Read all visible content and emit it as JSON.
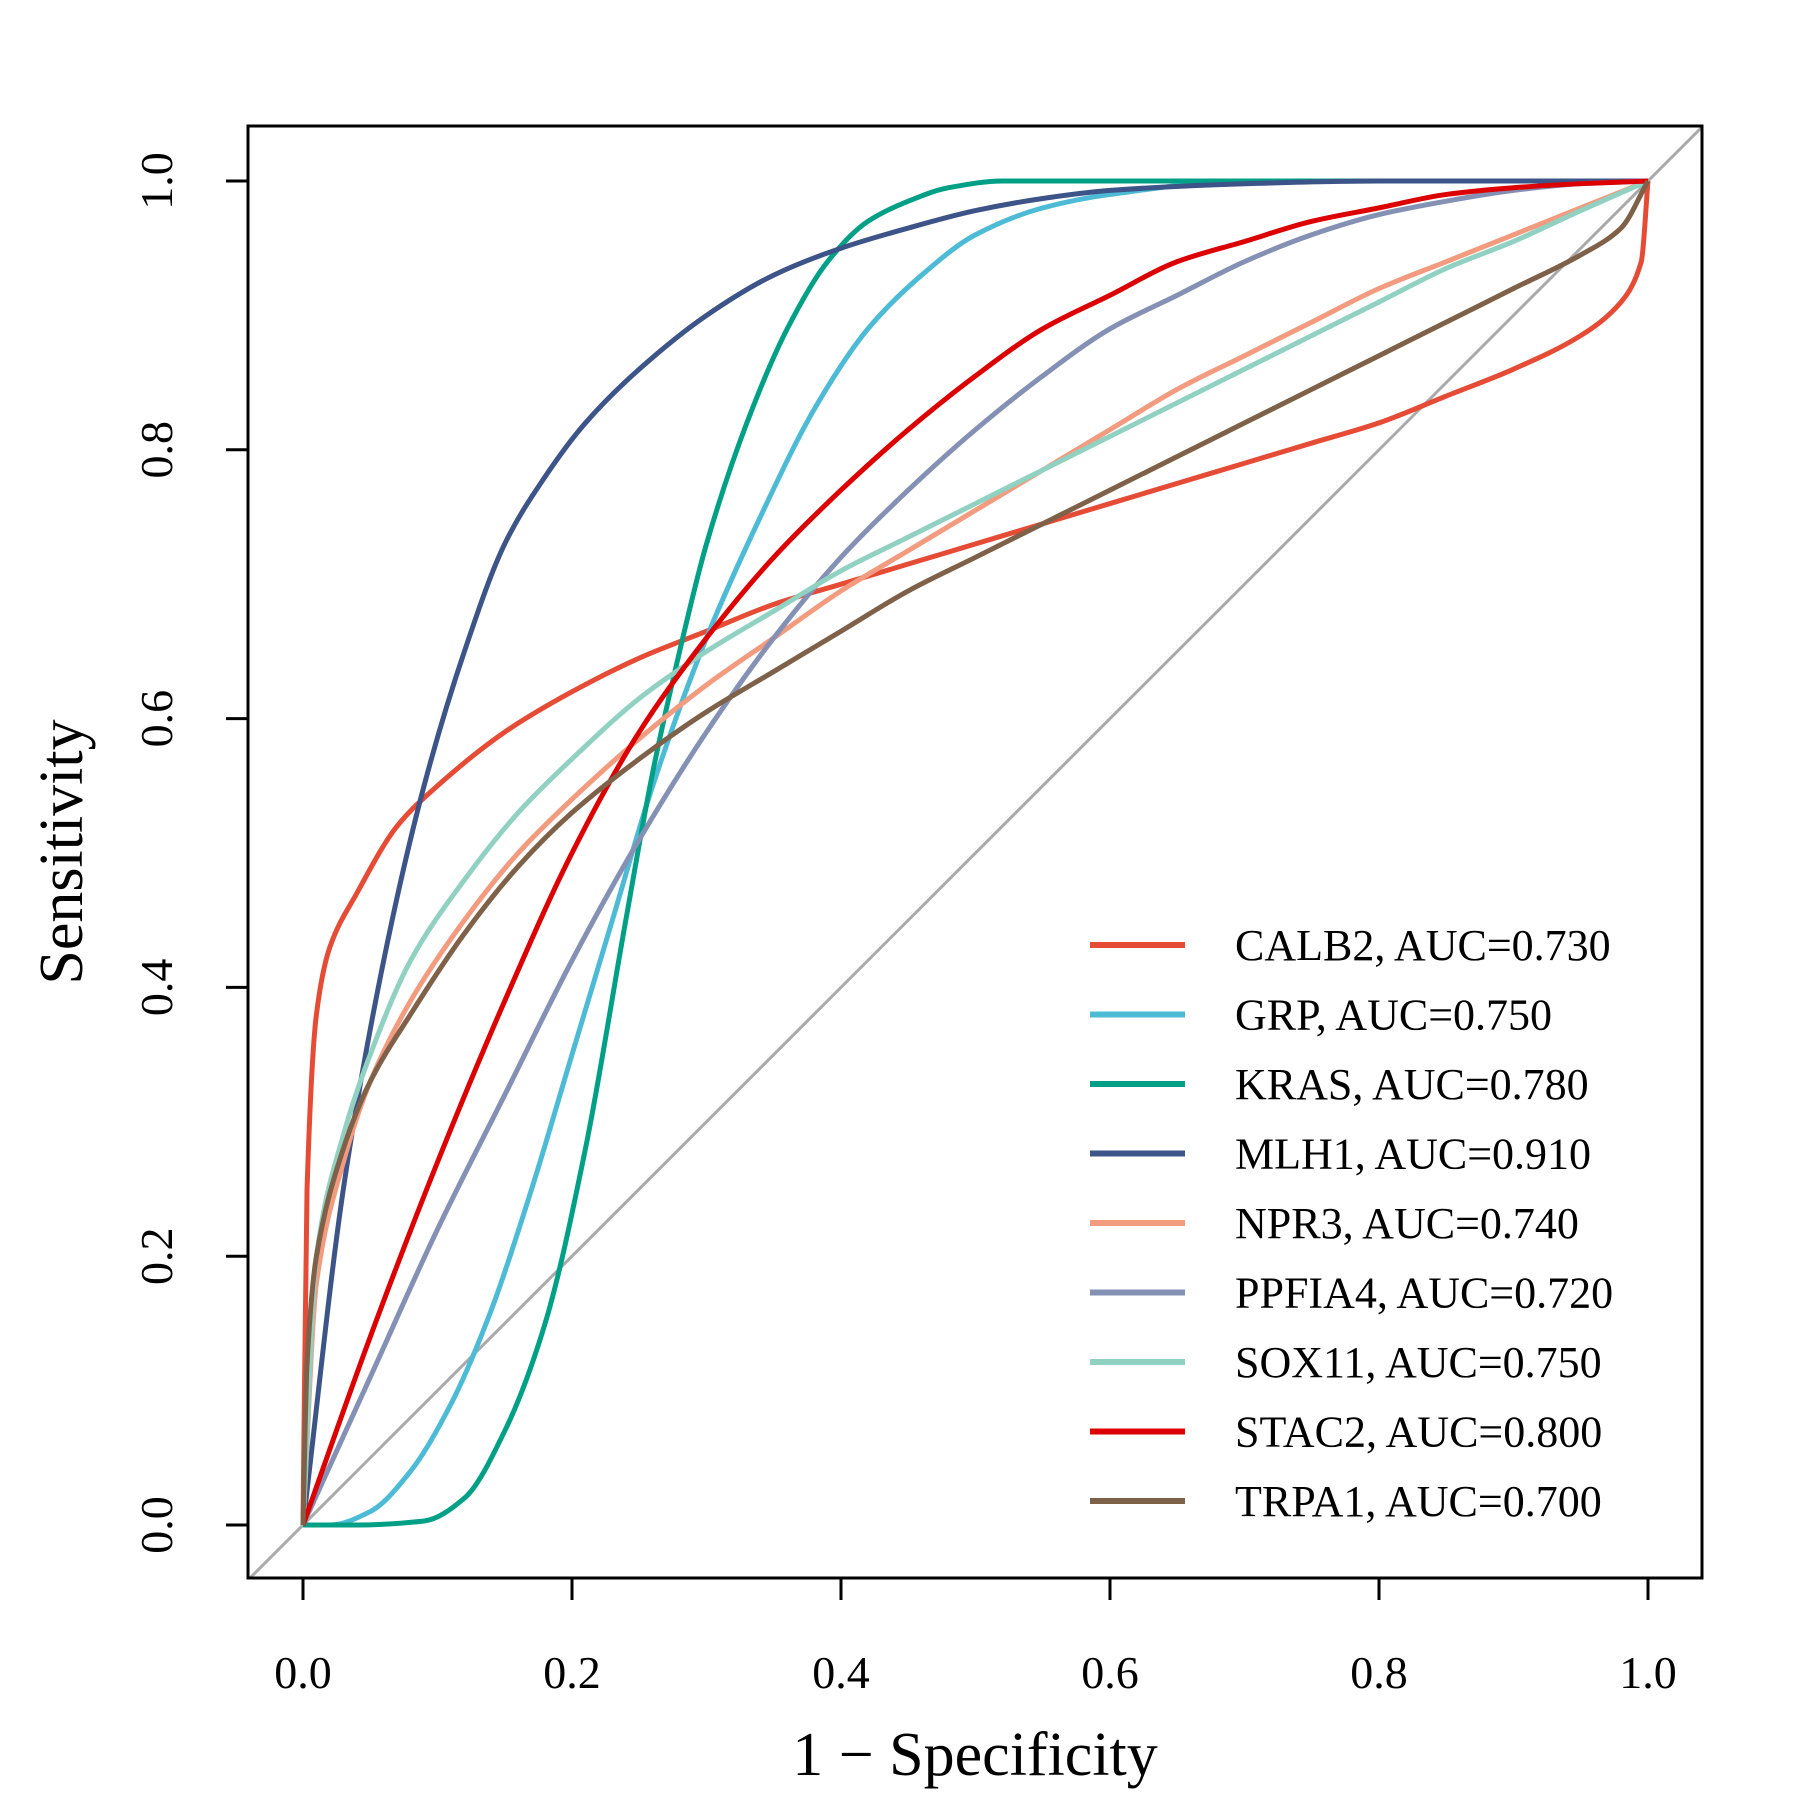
{
  "chart_data": {
    "type": "line",
    "title": "",
    "xlabel": "1 − Specificity",
    "ylabel": "Sensitivity",
    "xlim": [
      0,
      1
    ],
    "ylim": [
      0,
      1
    ],
    "xticks": [
      "0.0",
      "0.2",
      "0.4",
      "0.6",
      "0.8",
      "1.0"
    ],
    "yticks": [
      "0.0",
      "0.2",
      "0.4",
      "0.6",
      "0.8",
      "1.0"
    ],
    "grid": false,
    "legend_position": "bottom-right",
    "reference_line": {
      "color": "#aaaaaa",
      "points": [
        [
          0,
          0
        ],
        [
          1,
          1
        ]
      ]
    },
    "series": [
      {
        "name": "CALB2, AUC=0.730",
        "color": "#e64b35",
        "x": [
          0,
          0.003,
          0.01,
          0.02,
          0.04,
          0.07,
          0.1,
          0.15,
          0.2,
          0.25,
          0.3,
          0.35,
          0.4,
          0.45,
          0.5,
          0.55,
          0.6,
          0.65,
          0.7,
          0.75,
          0.8,
          0.85,
          0.9,
          0.95,
          0.98,
          0.995,
          1.0
        ],
        "y": [
          0,
          0.25,
          0.38,
          0.43,
          0.47,
          0.52,
          0.55,
          0.59,
          0.62,
          0.645,
          0.665,
          0.685,
          0.7,
          0.715,
          0.73,
          0.745,
          0.76,
          0.775,
          0.79,
          0.805,
          0.82,
          0.84,
          0.86,
          0.885,
          0.91,
          0.94,
          1.0
        ]
      },
      {
        "name": "GRP, AUC=0.750",
        "color": "#4dbbd5",
        "x": [
          0,
          0.02,
          0.05,
          0.08,
          0.11,
          0.14,
          0.17,
          0.2,
          0.23,
          0.26,
          0.3,
          0.34,
          0.38,
          0.42,
          0.46,
          0.5,
          0.55,
          0.6,
          0.7,
          0.8,
          0.9,
          1.0
        ],
        "y": [
          0,
          0.0,
          0.01,
          0.04,
          0.09,
          0.16,
          0.25,
          0.35,
          0.45,
          0.55,
          0.66,
          0.75,
          0.83,
          0.89,
          0.93,
          0.96,
          0.98,
          0.99,
          1.0,
          1.0,
          1.0,
          1.0
        ]
      },
      {
        "name": "KRAS, AUC=0.780",
        "color": "#00a087",
        "x": [
          0,
          0.04,
          0.09,
          0.12,
          0.15,
          0.18,
          0.21,
          0.24,
          0.26,
          0.28,
          0.3,
          0.33,
          0.36,
          0.39,
          0.42,
          0.45,
          0.48,
          0.52,
          0.6,
          0.7,
          0.8,
          0.9,
          1.0
        ],
        "y": [
          0,
          0.0,
          0.003,
          0.02,
          0.07,
          0.15,
          0.28,
          0.45,
          0.56,
          0.65,
          0.73,
          0.82,
          0.89,
          0.94,
          0.97,
          0.985,
          0.995,
          1.0,
          1.0,
          1.0,
          1.0,
          1.0,
          1.0
        ]
      },
      {
        "name": "MLH1, AUC=0.910",
        "color": "#3c5488",
        "x": [
          0,
          0.03,
          0.06,
          0.09,
          0.12,
          0.15,
          0.18,
          0.21,
          0.25,
          0.3,
          0.35,
          0.4,
          0.45,
          0.5,
          0.55,
          0.6,
          0.7,
          0.8,
          0.9,
          1.0
        ],
        "y": [
          0,
          0.25,
          0.42,
          0.55,
          0.65,
          0.73,
          0.78,
          0.82,
          0.86,
          0.9,
          0.93,
          0.95,
          0.965,
          0.978,
          0.987,
          0.993,
          0.998,
          1.0,
          1.0,
          1.0
        ]
      },
      {
        "name": "NPR3, AUC=0.740",
        "color": "#f39b7f",
        "x": [
          0,
          0.01,
          0.03,
          0.05,
          0.08,
          0.12,
          0.16,
          0.2,
          0.25,
          0.3,
          0.35,
          0.4,
          0.45,
          0.5,
          0.55,
          0.6,
          0.65,
          0.7,
          0.75,
          0.8,
          0.85,
          0.9,
          0.95,
          1.0
        ],
        "y": [
          0,
          0.18,
          0.27,
          0.33,
          0.39,
          0.45,
          0.5,
          0.54,
          0.585,
          0.625,
          0.66,
          0.695,
          0.725,
          0.755,
          0.785,
          0.815,
          0.845,
          0.87,
          0.895,
          0.92,
          0.94,
          0.96,
          0.98,
          1.0
        ]
      },
      {
        "name": "PPFIA4, AUC=0.720",
        "color": "#8491b4",
        "x": [
          0,
          0.05,
          0.1,
          0.15,
          0.2,
          0.25,
          0.3,
          0.35,
          0.4,
          0.45,
          0.5,
          0.55,
          0.6,
          0.65,
          0.7,
          0.75,
          0.8,
          0.85,
          0.9,
          0.95,
          1.0
        ],
        "y": [
          0,
          0.11,
          0.22,
          0.32,
          0.42,
          0.51,
          0.59,
          0.66,
          0.72,
          0.77,
          0.815,
          0.855,
          0.89,
          0.915,
          0.94,
          0.96,
          0.975,
          0.985,
          0.993,
          0.998,
          1.0
        ]
      },
      {
        "name": "SOX11, AUC=0.750",
        "color": "#91d1c2",
        "x": [
          0,
          0.01,
          0.03,
          0.05,
          0.08,
          0.12,
          0.16,
          0.2,
          0.25,
          0.3,
          0.35,
          0.4,
          0.45,
          0.5,
          0.55,
          0.6,
          0.65,
          0.7,
          0.75,
          0.8,
          0.85,
          0.9,
          0.95,
          1.0
        ],
        "y": [
          0,
          0.2,
          0.29,
          0.35,
          0.42,
          0.48,
          0.53,
          0.57,
          0.615,
          0.65,
          0.68,
          0.71,
          0.735,
          0.76,
          0.785,
          0.81,
          0.835,
          0.86,
          0.885,
          0.91,
          0.935,
          0.955,
          0.978,
          1.0
        ]
      },
      {
        "name": "STAC2, AUC=0.800",
        "color": "#dc0000",
        "x": [
          0,
          0.05,
          0.1,
          0.15,
          0.2,
          0.25,
          0.3,
          0.35,
          0.4,
          0.45,
          0.5,
          0.55,
          0.6,
          0.65,
          0.7,
          0.75,
          0.8,
          0.85,
          0.9,
          0.95,
          1.0
        ],
        "y": [
          0,
          0.14,
          0.27,
          0.39,
          0.5,
          0.59,
          0.66,
          0.72,
          0.77,
          0.815,
          0.855,
          0.89,
          0.915,
          0.94,
          0.955,
          0.97,
          0.98,
          0.99,
          0.995,
          0.998,
          1.0
        ]
      },
      {
        "name": "TRPA1, AUC=0.700",
        "color": "#7e6148",
        "x": [
          0,
          0.003,
          0.01,
          0.03,
          0.05,
          0.08,
          0.12,
          0.16,
          0.2,
          0.25,
          0.3,
          0.35,
          0.4,
          0.45,
          0.5,
          0.55,
          0.6,
          0.65,
          0.7,
          0.75,
          0.8,
          0.85,
          0.9,
          0.95,
          0.98,
          1.0
        ],
        "y": [
          0,
          0.12,
          0.2,
          0.28,
          0.33,
          0.38,
          0.44,
          0.49,
          0.53,
          0.57,
          0.605,
          0.635,
          0.665,
          0.695,
          0.72,
          0.745,
          0.77,
          0.795,
          0.82,
          0.845,
          0.87,
          0.895,
          0.92,
          0.945,
          0.965,
          1.0
        ]
      }
    ]
  }
}
